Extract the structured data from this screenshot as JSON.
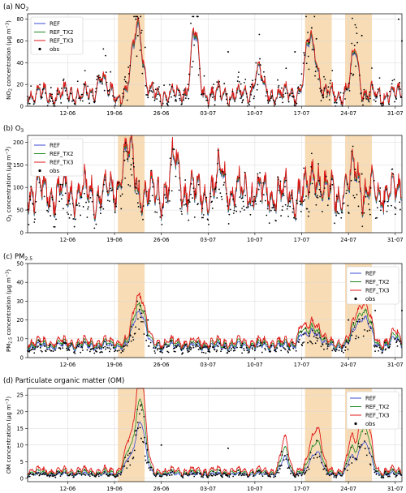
{
  "colors": {
    "REF": "#3b4bd6",
    "REF_TX2": "#1f8a1f",
    "REF_TX3": "#e01818",
    "obs": "#000000",
    "highlight": "#f6d6a8"
  },
  "chart_data": [
    {
      "type": "line",
      "title": "(a) NO",
      "title_sub": "2",
      "ylabel": "NO",
      "ylabel_sub": "2",
      "ylabel_rest": " concentration (µg m",
      "ylabel_sup": "−3",
      "ylabel_end": ")",
      "ylim": [
        0,
        85
      ],
      "yticks": [
        0,
        20,
        40,
        60,
        80
      ],
      "legend": "top-left",
      "series_names": [
        "REF",
        "REF_TX2",
        "REF_TX3",
        "obs"
      ],
      "base": 10,
      "amp": 8,
      "peak_scale": 1.0,
      "tx_boost": 0.05,
      "obs_spread": 1.3,
      "highlights": [
        [
          13.5,
          17.5
        ],
        [
          41.5,
          45.5
        ],
        [
          47.5,
          51.5
        ]
      ],
      "peaks": [
        [
          16,
          35
        ],
        [
          16.8,
          45
        ],
        [
          11,
          18
        ],
        [
          25,
          55
        ],
        [
          34.5,
          22
        ],
        [
          42,
          40
        ],
        [
          43,
          33
        ],
        [
          49,
          38
        ],
        [
          57,
          22
        ],
        [
          60.5,
          28
        ],
        [
          65,
          30
        ]
      ],
      "obs_extra": [
        [
          16.5,
          65
        ],
        [
          16.2,
          80
        ],
        [
          42.5,
          72
        ],
        [
          43.2,
          62
        ],
        [
          50,
          65
        ],
        [
          55.5,
          80
        ],
        [
          56,
          60
        ],
        [
          61,
          33
        ],
        [
          40,
          50
        ],
        [
          30,
          50
        ],
        [
          58,
          45
        ]
      ]
    },
    {
      "type": "line",
      "title": "(b) O",
      "title_sub": "3",
      "ylabel": "O",
      "ylabel_sub": "3",
      "ylabel_rest": " concentration (µg m",
      "ylabel_sup": "−3",
      "ylabel_end": ")",
      "ylim": [
        0,
        215
      ],
      "yticks": [
        0,
        50,
        100,
        150,
        200
      ],
      "legend": "top-left",
      "series_names": [
        "REF",
        "REF_TX2",
        "REF_TX3",
        "obs"
      ],
      "base": 85,
      "amp": 40,
      "peak_scale": 1.0,
      "tx_boost": 0.02,
      "obs_spread": 0.7,
      "highlights": [
        [
          13.5,
          17.5
        ],
        [
          41.5,
          45.5
        ],
        [
          47.5,
          51.5
        ]
      ],
      "peaks": [
        [
          14.5,
          60
        ],
        [
          15.5,
          70
        ],
        [
          22,
          75
        ],
        [
          29,
          50
        ],
        [
          43,
          55
        ],
        [
          49,
          55
        ],
        [
          60,
          40
        ],
        [
          63.5,
          110
        ],
        [
          64.5,
          80
        ]
      ],
      "obs_extra": [
        [
          14.5,
          160
        ],
        [
          15.5,
          150
        ],
        [
          49,
          140
        ],
        [
          50,
          130
        ],
        [
          63.5,
          150
        ]
      ]
    },
    {
      "type": "line",
      "title": "(c) PM",
      "title_sub": "2.5",
      "ylabel": "PM",
      "ylabel_sub": "2.5",
      "ylabel_rest": " concentration (µg m",
      "ylabel_sup": "−3",
      "ylabel_end": ")",
      "ylim": [
        0,
        50
      ],
      "yticks": [
        0,
        10,
        20,
        30,
        40,
        50
      ],
      "legend": "top-right",
      "series_names": [
        "REF",
        "REF_TX2",
        "REF_TX3",
        "obs"
      ],
      "base": 6,
      "amp": 2,
      "peak_scale": 1.0,
      "tx_boost": 0.35,
      "obs_spread": 0.7,
      "highlights": [
        [
          13.5,
          17.5
        ],
        [
          41.5,
          45.5
        ],
        [
          47.5,
          51.5
        ]
      ],
      "peaks": [
        [
          16,
          9
        ],
        [
          16.8,
          13
        ],
        [
          17.5,
          7
        ],
        [
          41,
          6
        ],
        [
          42.5,
          7
        ],
        [
          43.5,
          5
        ],
        [
          49,
          8
        ],
        [
          50,
          12
        ],
        [
          51,
          10
        ],
        [
          55,
          4
        ]
      ],
      "obs_extra": [
        [
          50.5,
          42
        ],
        [
          53,
          30
        ],
        [
          52,
          25
        ],
        [
          56,
          25
        ],
        [
          18,
          20
        ],
        [
          48,
          20
        ]
      ]
    },
    {
      "type": "line",
      "title": "(d) Particulate organic matter (OM)",
      "title_sub": "",
      "ylabel": "OM concentration (µg m",
      "ylabel_sub": "",
      "ylabel_rest": "",
      "ylabel_sup": "−3",
      "ylabel_end": ")",
      "ylim": [
        -1,
        27
      ],
      "yticks": [
        0,
        5,
        10,
        15,
        20,
        25
      ],
      "legend": "top-right",
      "series_names": [
        "REF",
        "REF_TX2",
        "REF_TX3",
        "obs"
      ],
      "base": 1.2,
      "amp": 0.6,
      "peak_scale": 1.0,
      "tx_boost": 0.9,
      "obs_spread": 0.9,
      "highlights": [
        [
          13.5,
          17.5
        ],
        [
          41.5,
          45.5
        ],
        [
          47.5,
          51.5
        ]
      ],
      "peaks": [
        [
          15,
          4
        ],
        [
          16.2,
          6
        ],
        [
          16.9,
          10
        ],
        [
          17.4,
          5
        ],
        [
          38.5,
          5
        ],
        [
          42.5,
          4
        ],
        [
          43.5,
          6
        ],
        [
          48.5,
          5
        ],
        [
          50,
          8
        ],
        [
          51,
          6
        ]
      ],
      "obs_extra": [
        [
          16.5,
          15
        ],
        [
          16.2,
          13
        ],
        [
          17,
          12
        ],
        [
          20,
          10
        ],
        [
          30,
          9
        ],
        [
          38,
          8
        ]
      ]
    }
  ],
  "x_axis": {
    "start_date": "2018-06-06",
    "xlim_days": [
      0,
      56
    ],
    "tick_labels": [
      "12-06",
      "19-06",
      "26-06",
      "03-07",
      "10-07",
      "17-07",
      "24-07",
      "31-07"
    ],
    "tick_days": [
      6,
      13,
      20,
      27,
      34,
      41,
      48,
      55
    ]
  }
}
